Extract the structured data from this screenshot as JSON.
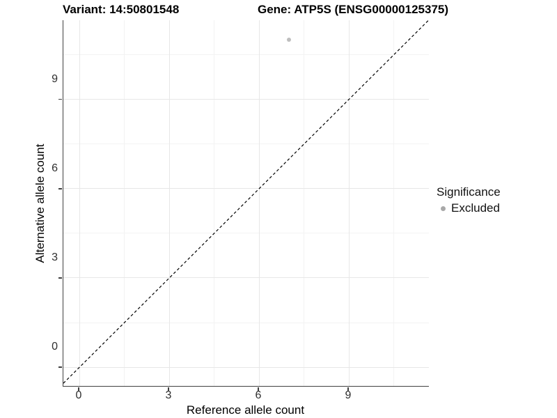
{
  "title": {
    "variant": "Variant: 14:50801548",
    "gene": "Gene: ATP5S (ENSG00000125375)"
  },
  "axes": {
    "x": {
      "title": "Reference allele count",
      "ticks": [
        "0",
        "3",
        "6",
        "9"
      ]
    },
    "y": {
      "title": "Alternative allele count",
      "ticks": [
        "0",
        "3",
        "6",
        "9"
      ]
    }
  },
  "legend": {
    "title": "Significance",
    "items": [
      {
        "label": "Excluded",
        "color": "#a8a8a8"
      }
    ]
  },
  "colors": {
    "background": "#ffffff",
    "axis_line": "#3f3f3f",
    "tick_label": "#2e2e2e",
    "grid_major": "#e7e7e7",
    "grid_minor": "#f3f3f3",
    "point": "#bebebe",
    "reference_line": "#000000"
  },
  "chart_data": {
    "type": "scatter",
    "title": "Variant: 14:50801548   Gene: ATP5S (ENSG00000125375)",
    "xlabel": "Reference allele count",
    "ylabel": "Alternative allele count",
    "xlim": [
      -0.54,
      11.67
    ],
    "ylim": [
      -0.63,
      11.66
    ],
    "x_ticks": [
      0,
      3,
      6,
      9
    ],
    "y_ticks": [
      0,
      3,
      6,
      9
    ],
    "x_minor_ticks": [
      1.5,
      4.5,
      7.5,
      10.5
    ],
    "y_minor_ticks": [
      1.5,
      4.5,
      7.5,
      10.5
    ],
    "grid": "white panel with light-gray major and minor gridlines",
    "legend_position": "right",
    "series": [
      {
        "name": "Excluded",
        "color": "#bebebe",
        "points": [
          {
            "x": 7,
            "y": 11
          }
        ]
      }
    ],
    "reference_line": {
      "kind": "identity y=x",
      "style": "dashed",
      "color": "#000000"
    }
  }
}
